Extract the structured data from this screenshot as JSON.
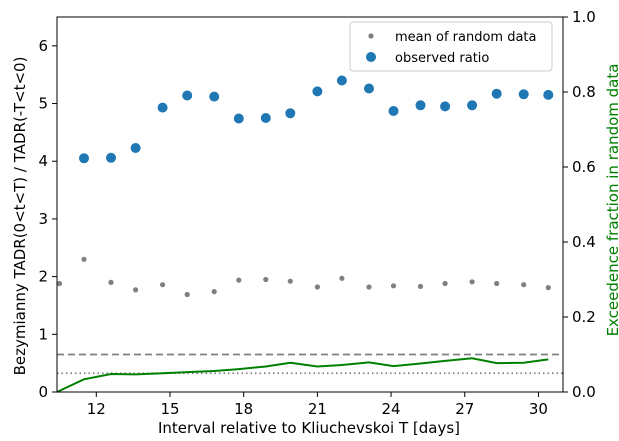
{
  "chart_data": {
    "type": "scatter",
    "xlabel": "Interval relative to Kliuchevskoi T [days]",
    "ylabel": "Bezymianny TADR(0<t<T) / TADR(-T<t<0)",
    "y2label": "Exceedence fraction in random data",
    "xlim": [
      10.4,
      31.0
    ],
    "ylim": [
      0,
      6.5
    ],
    "y2lim": [
      0,
      1.0
    ],
    "xticks": [
      12,
      15,
      18,
      21,
      24,
      27,
      30
    ],
    "yticks": [
      0,
      1,
      2,
      3,
      4,
      5,
      6
    ],
    "y2ticks": [
      "0.0",
      "0.2",
      "0.4",
      "0.6",
      "0.8",
      "1.0"
    ],
    "grid": false,
    "legend_position": "top-right",
    "series": [
      {
        "name": "mean of random data",
        "marker": "small-dot",
        "color": "#808080",
        "axis": "left",
        "x": [
          10.5,
          11.5,
          12.6,
          13.6,
          14.7,
          15.7,
          16.8,
          17.8,
          18.9,
          19.9,
          21.0,
          22.0,
          23.1,
          24.1,
          25.2,
          26.2,
          27.3,
          28.3,
          29.4,
          30.4
        ],
        "y": [
          1.88,
          2.3,
          1.9,
          1.77,
          1.86,
          1.69,
          1.74,
          1.94,
          1.95,
          1.92,
          1.82,
          1.97,
          1.82,
          1.84,
          1.83,
          1.88,
          1.91,
          1.88,
          1.86,
          1.81
        ]
      },
      {
        "name": "observed ratio",
        "marker": "large-dot",
        "color": "#1f77b4",
        "axis": "left",
        "x": [
          11.5,
          12.6,
          13.6,
          14.7,
          15.7,
          16.8,
          17.8,
          18.9,
          19.9,
          21.0,
          22.0,
          23.1,
          24.1,
          25.2,
          26.2,
          27.3,
          28.3,
          29.4,
          30.4
        ],
        "y": [
          4.05,
          4.06,
          4.23,
          4.93,
          5.14,
          5.12,
          4.74,
          4.75,
          4.83,
          5.21,
          5.4,
          5.26,
          4.87,
          4.97,
          4.95,
          4.97,
          5.17,
          5.16,
          5.15
        ]
      },
      {
        "marker": "line",
        "color": "#008000",
        "axis": "right",
        "x": [
          10.4,
          11.5,
          12.6,
          13.6,
          14.7,
          15.7,
          16.8,
          17.8,
          18.9,
          19.9,
          21.0,
          22.0,
          23.1,
          24.1,
          25.2,
          26.2,
          27.3,
          28.3,
          29.4,
          30.4
        ],
        "y": [
          0.0,
          0.034,
          0.048,
          0.047,
          0.05,
          0.053,
          0.056,
          0.061,
          0.068,
          0.078,
          0.068,
          0.072,
          0.079,
          0.069,
          0.076,
          0.083,
          0.09,
          0.077,
          0.078,
          0.087
        ]
      },
      {
        "marker": "dashed-hline",
        "color": "#808080",
        "axis": "right",
        "y": 0.1
      },
      {
        "marker": "dotted-hline",
        "color": "#808080",
        "axis": "right",
        "y": 0.05
      }
    ]
  }
}
